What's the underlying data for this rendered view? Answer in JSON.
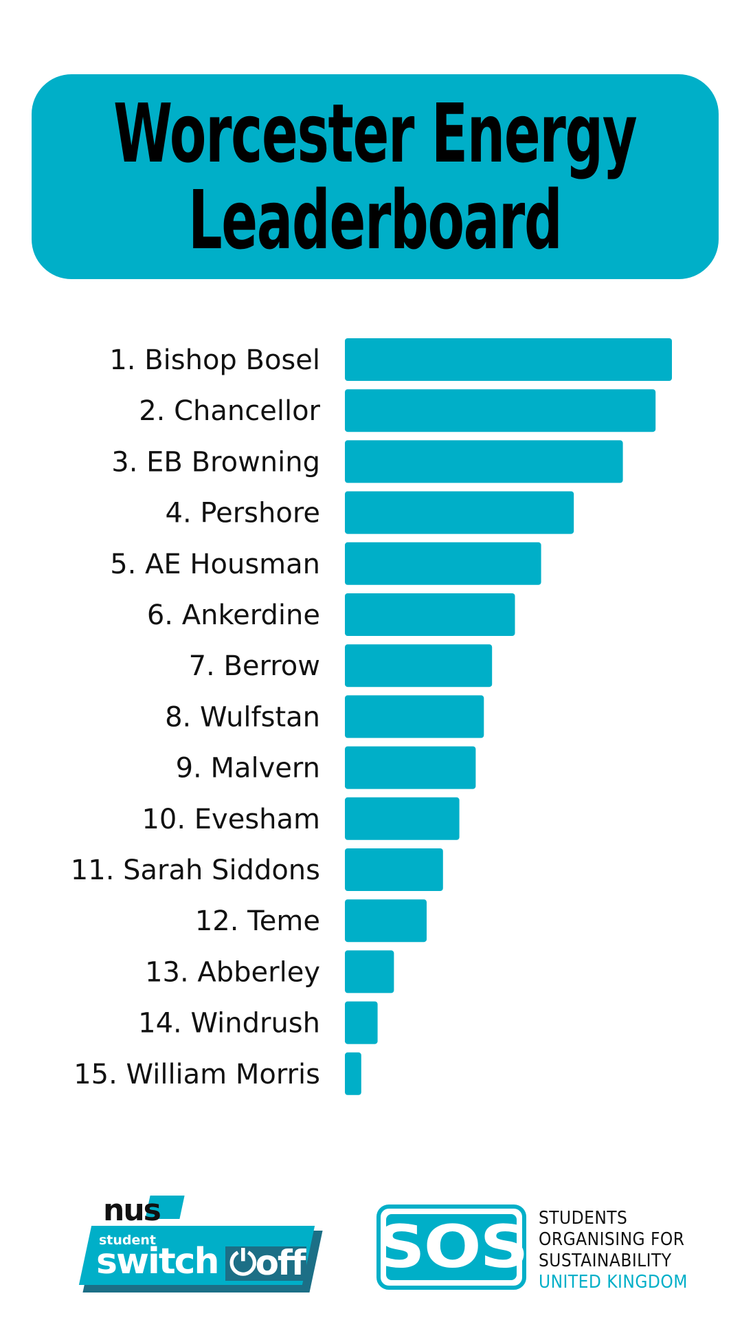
{
  "title": {
    "line1": "Worcester Energy",
    "line2": "Leaderboard"
  },
  "colors": {
    "accent": "#00AFC8",
    "dark_teal": "#1c6f86",
    "text": "#111111"
  },
  "chart_data": {
    "type": "bar",
    "orientation": "horizontal",
    "categories": [
      "1. Bishop Bosel",
      "2. Chancellor",
      "3. EB Browning",
      "4. Pershore",
      "5. AE Housman",
      "6. Ankerdine",
      "7. Berrow",
      "8. Wulfstan",
      "9. Malvern",
      "10. Evesham",
      "11. Sarah Siddons",
      "12. Teme",
      "13. Abberley",
      "14. Windrush",
      "15. William Morris"
    ],
    "values": [
      100,
      95,
      85,
      70,
      60,
      52,
      45,
      42.5,
      40,
      35,
      30,
      25,
      15,
      10,
      5
    ],
    "xlim": [
      0,
      100
    ],
    "grid": false,
    "legend": "none",
    "title": "Worcester Energy Leaderboard",
    "xlabel": "",
    "ylabel": ""
  },
  "footer": {
    "nus_logo": {
      "nus": "nus",
      "student": "student",
      "switch": "switch",
      "off": "off"
    },
    "sos_logo": {
      "letters": "SOS",
      "line1": "STUDENTS",
      "line2": "ORGANISING FOR",
      "line3": "SUSTAINABILITY",
      "line4": "UNITED KINGDOM"
    }
  }
}
